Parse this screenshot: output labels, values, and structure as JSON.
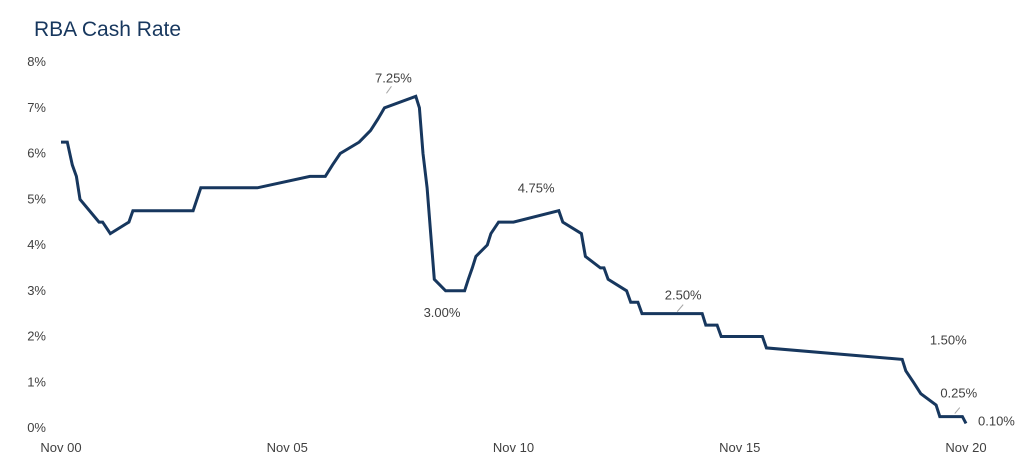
{
  "chart_data": {
    "type": "line",
    "title": "RBA Cash Rate",
    "xlabel": "",
    "ylabel": "",
    "ylim": [
      0,
      8
    ],
    "xlim": [
      2000.83,
      2020.83
    ],
    "grid": false,
    "y_ticks": [
      "0%",
      "1%",
      "2%",
      "3%",
      "4%",
      "5%",
      "6%",
      "7%",
      "8%"
    ],
    "x_ticks": [
      {
        "label": "Nov 00",
        "x": 2000.83
      },
      {
        "label": "Nov 05",
        "x": 2005.83
      },
      {
        "label": "Nov 10",
        "x": 2010.83
      },
      {
        "label": "Nov 15",
        "x": 2015.83
      },
      {
        "label": "Nov 20",
        "x": 2020.83
      }
    ],
    "color": "#17375e",
    "series": [
      {
        "step": true,
        "x": [
          2000.83,
          2000.97,
          2001.08,
          2001.17,
          2001.25,
          2001.67,
          2001.75,
          2001.92,
          2002.33,
          2002.42,
          2003.75,
          2003.92,
          2005.17,
          2006.33,
          2006.67,
          2006.83,
          2007.0,
          2007.42,
          2007.67,
          2007.83,
          2007.98,
          2008.67,
          2008.75,
          2008.83,
          2008.92,
          2009.0,
          2009.08,
          2009.33,
          2009.75,
          2009.83,
          2009.92,
          2010.0,
          2010.25,
          2010.33,
          2010.5,
          2010.83,
          2011.83,
          2011.92,
          2012.33,
          2012.42,
          2012.75,
          2012.83,
          2012.92,
          2013.33,
          2013.42,
          2013.58,
          2013.67,
          2015.0,
          2015.08,
          2015.33,
          2015.42,
          2016.33,
          2016.42,
          2019.42,
          2019.5,
          2019.67,
          2019.83,
          2020.17,
          2020.25,
          2020.75,
          2020.83
        ],
        "y": [
          6.25,
          6.25,
          5.75,
          5.5,
          5.0,
          4.5,
          4.5,
          4.25,
          4.5,
          4.75,
          4.75,
          5.25,
          5.25,
          5.5,
          5.5,
          5.75,
          6.0,
          6.25,
          6.5,
          6.75,
          7.0,
          7.25,
          7.0,
          6.0,
          5.25,
          4.25,
          3.25,
          3.0,
          3.0,
          3.25,
          3.5,
          3.75,
          4.0,
          4.25,
          4.5,
          4.5,
          4.75,
          4.5,
          4.25,
          3.75,
          3.5,
          3.5,
          3.25,
          3.0,
          2.75,
          2.75,
          2.5,
          2.5,
          2.25,
          2.25,
          2.0,
          2.0,
          1.75,
          1.5,
          1.25,
          1.0,
          0.75,
          0.5,
          0.25,
          0.25,
          0.1
        ]
      }
    ],
    "annotations": [
      {
        "text": "7.25%",
        "x": 2008.0,
        "y": 7.25,
        "leader": true
      },
      {
        "text": "3.00%",
        "x": 2009.25,
        "y": 3.0,
        "leader": false
      },
      {
        "text": "4.75%",
        "x": 2011.33,
        "y": 4.75,
        "leader": false
      },
      {
        "text": "2.50%",
        "x": 2014.58,
        "y": 2.5,
        "leader": true
      },
      {
        "text": "1.50%",
        "x": 2019.5,
        "y": 1.5,
        "leader": false
      },
      {
        "text": "0.25%",
        "x": 2020.67,
        "y": 0.25,
        "leader": true
      },
      {
        "text": "0.10%",
        "x": 2020.83,
        "y": 0.1,
        "leader": false
      }
    ]
  }
}
